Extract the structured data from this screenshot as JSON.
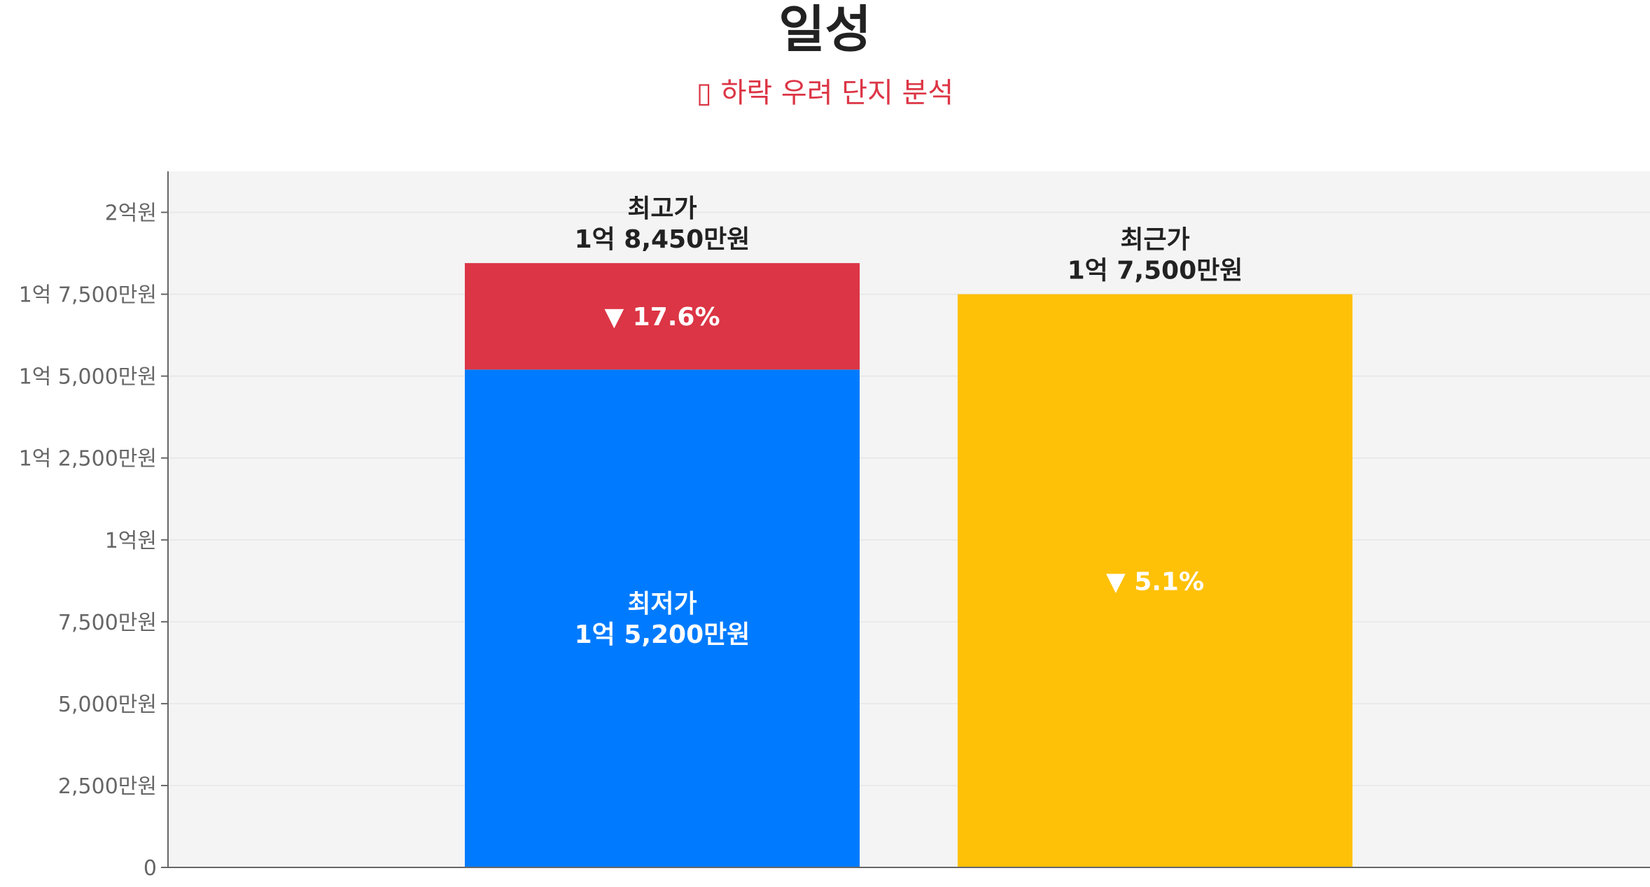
{
  "header": {
    "title": "일성",
    "subtitle": "▯ 하락 우려 단지 분석"
  },
  "chart_data": {
    "type": "bar",
    "stacked": true,
    "ylim": [
      0,
      21250
    ],
    "yticks": [
      {
        "value": 0,
        "label": "0"
      },
      {
        "value": 2500,
        "label": "2,500만원"
      },
      {
        "value": 5000,
        "label": "5,000만원"
      },
      {
        "value": 7500,
        "label": "7,500만원"
      },
      {
        "value": 10000,
        "label": "1억원"
      },
      {
        "value": 12500,
        "label": "1억 2,500만원"
      },
      {
        "value": 15000,
        "label": "1억 5,000만원"
      },
      {
        "value": 17500,
        "label": "1억 7,500만원"
      },
      {
        "value": 20000,
        "label": "2억원"
      }
    ],
    "grid": true,
    "bars": [
      {
        "segments": [
          {
            "from": 0,
            "to": 15200,
            "color": "#007bff",
            "label": [
              "최저가",
              "1억 5,200만원"
            ],
            "label_color": "#ffffff"
          },
          {
            "from": 15200,
            "to": 18450,
            "color": "#dc3545",
            "label": [
              "▼ 17.6%"
            ],
            "label_color": "#ffffff"
          }
        ],
        "top_label": [
          "최고가",
          "1억 8,450만원"
        ]
      },
      {
        "segments": [
          {
            "from": 0,
            "to": 17500,
            "color": "#ffc107",
            "label": [
              "▼ 5.1%"
            ],
            "label_color": "#ffffff"
          }
        ],
        "top_label": [
          "최근가",
          "1억 7,500만원"
        ]
      }
    ],
    "colors": {
      "plot_background": "#f4f4f4",
      "grid": "#e6e6e6",
      "axis": "#666666",
      "top_label": "#222222"
    }
  }
}
